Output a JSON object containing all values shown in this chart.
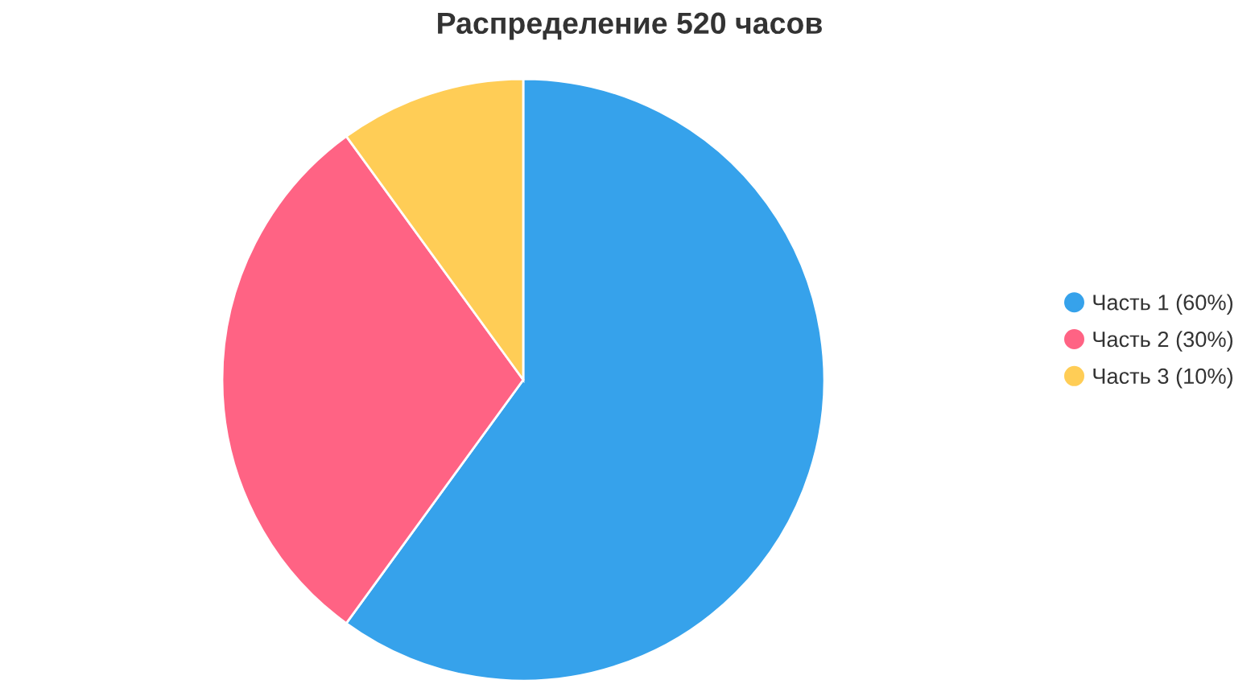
{
  "chart_data": {
    "type": "pie",
    "title": "Распределение 520 часов",
    "categories": [
      "Часть 1 (60%)",
      "Часть 2 (30%)",
      "Часть 3 (10%)"
    ],
    "values": [
      60,
      30,
      10
    ],
    "colors": [
      "#36a2eb",
      "#ff6384",
      "#ffcd56"
    ],
    "legend": "right"
  }
}
